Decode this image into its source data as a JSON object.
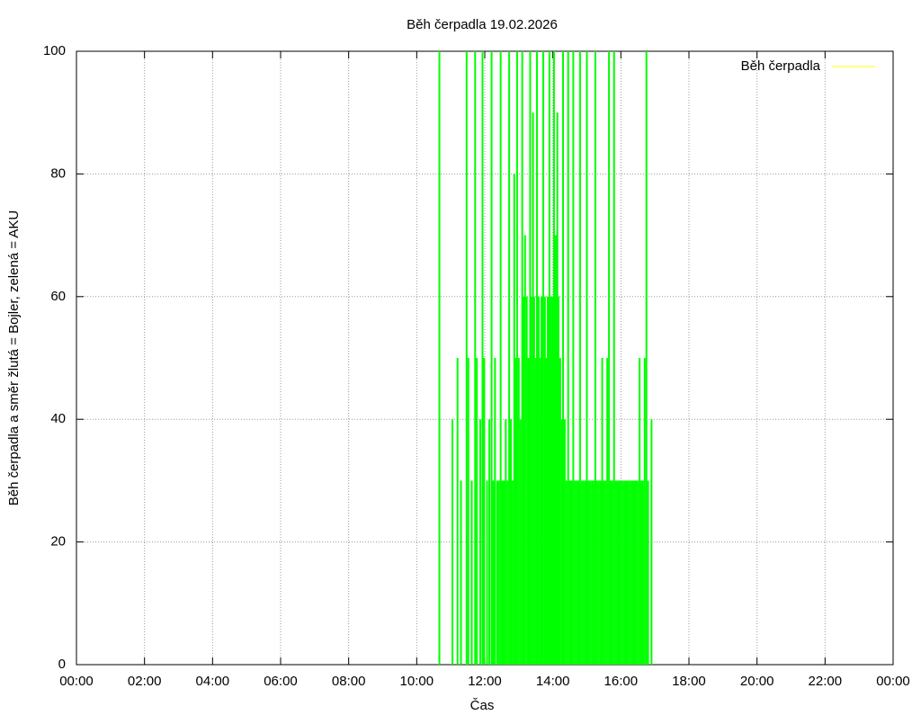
{
  "chart_data": {
    "type": "impulses",
    "title": "Běh čerpadla 19.02.2026",
    "x_label": "Čas",
    "y_label": "Běh čerpadla a směr žlutá = Bojler, zelená = AKU",
    "xlim": [
      0,
      1440
    ],
    "xticks": [
      {
        "value": 0,
        "label": "00:00"
      },
      {
        "value": 120,
        "label": "02:00"
      },
      {
        "value": 240,
        "label": "04:00"
      },
      {
        "value": 360,
        "label": "06:00"
      },
      {
        "value": 480,
        "label": "08:00"
      },
      {
        "value": 600,
        "label": "10:00"
      },
      {
        "value": 720,
        "label": "12:00"
      },
      {
        "value": 840,
        "label": "14:00"
      },
      {
        "value": 960,
        "label": "16:00"
      },
      {
        "value": 1080,
        "label": "18:00"
      },
      {
        "value": 1200,
        "label": "20:00"
      },
      {
        "value": 1320,
        "label": "22:00"
      },
      {
        "value": 1440,
        "label": "00:00"
      }
    ],
    "ylim": [
      0,
      100
    ],
    "yticks": [
      0,
      20,
      40,
      60,
      80,
      100
    ],
    "grid": true,
    "legend": "top-right",
    "series": [
      {
        "name": "Běh čerpadla",
        "color": "#ffff00",
        "impulse_color": "#00ff00",
        "x": [
          640,
          663,
          672,
          678,
          688,
          691,
          697,
          703,
          706,
          712,
          716,
          719,
          724,
          728,
          732,
          735,
          738,
          742,
          745,
          748,
          751,
          754,
          757,
          760,
          763,
          766,
          769,
          772,
          774,
          777,
          780,
          783,
          786,
          789,
          791,
          794,
          797,
          800,
          802,
          805,
          807,
          810,
          812,
          815,
          818,
          820,
          823,
          826,
          828,
          831,
          834,
          836,
          839,
          842,
          844,
          846,
          848,
          850,
          853,
          856,
          858,
          861,
          864,
          867,
          870,
          873,
          876,
          879,
          882,
          885,
          888,
          891,
          894,
          897,
          900,
          903,
          906,
          909,
          912,
          915,
          918,
          921,
          924,
          927,
          930,
          933,
          936,
          939,
          942,
          945,
          948,
          951,
          954,
          957,
          960,
          963,
          966,
          969,
          972,
          975,
          978,
          981,
          984,
          987,
          990,
          993,
          996,
          999,
          1002,
          1005,
          1008,
          1014
        ],
        "values": [
          100,
          40,
          50,
          30,
          100,
          50,
          30,
          100,
          50,
          40,
          100,
          50,
          30,
          40,
          100,
          30,
          50,
          30,
          30,
          100,
          30,
          30,
          40,
          30,
          100,
          40,
          30,
          80,
          50,
          100,
          50,
          40,
          100,
          60,
          70,
          60,
          50,
          100,
          60,
          90,
          60,
          50,
          100,
          60,
          50,
          60,
          100,
          60,
          50,
          60,
          100,
          60,
          60,
          100,
          70,
          70,
          90,
          60,
          50,
          40,
          100,
          40,
          30,
          100,
          30,
          30,
          100,
          30,
          30,
          30,
          100,
          30,
          30,
          30,
          100,
          30,
          30,
          30,
          30,
          100,
          30,
          30,
          30,
          50,
          30,
          30,
          50,
          100,
          30,
          30,
          100,
          30,
          30,
          30,
          30,
          30,
          30,
          30,
          30,
          30,
          30,
          30,
          30,
          30,
          30,
          50,
          30,
          30,
          50,
          100,
          30,
          40
        ]
      }
    ]
  }
}
